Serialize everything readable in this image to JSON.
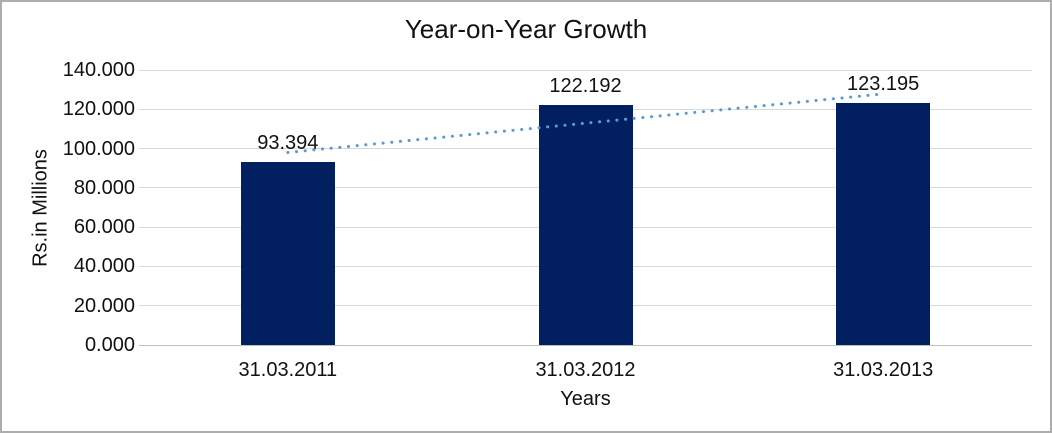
{
  "chart": {
    "title": "Year-on-Year Growth",
    "y_axis_title": "Rs.in Millions",
    "x_axis_title": "Years"
  },
  "chart_data": {
    "type": "bar",
    "title": "Year-on-Year Growth",
    "xlabel": "Years",
    "ylabel": "Rs.in Millions",
    "categories": [
      "31.03.2011",
      "31.03.2012",
      "31.03.2013"
    ],
    "values": [
      93.394,
      122.192,
      123.195
    ],
    "data_labels": [
      "93.394",
      "122.192",
      "123.195"
    ],
    "y_ticks": [
      "0.000",
      "20.000",
      "40.000",
      "60.000",
      "80.000",
      "100.000",
      "120.000",
      "140.000"
    ],
    "ylim": [
      0,
      140
    ],
    "grid": true,
    "legend": "none",
    "bar_color": "#022060",
    "gridline_color": "#D9D9D9",
    "axis_line_color": "#BFBFBF",
    "text_color": "#111111",
    "trendline": {
      "type": "linear",
      "style": "dotted",
      "color": "#5B9BD5",
      "fit_values": [
        98.027,
        112.927,
        127.827
      ]
    }
  }
}
